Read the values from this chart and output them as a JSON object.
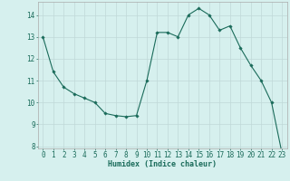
{
  "x": [
    0,
    1,
    2,
    3,
    4,
    5,
    6,
    7,
    8,
    9,
    10,
    11,
    12,
    13,
    14,
    15,
    16,
    17,
    18,
    19,
    20,
    21,
    22,
    23
  ],
  "y": [
    13.0,
    11.4,
    10.7,
    10.4,
    10.2,
    10.0,
    9.5,
    9.4,
    9.35,
    9.4,
    11.0,
    13.2,
    13.2,
    13.0,
    14.0,
    14.3,
    14.0,
    13.3,
    13.5,
    12.5,
    11.7,
    11.0,
    10.0,
    7.7
  ],
  "line_color": "#1a6b5a",
  "marker": "D",
  "marker_size": 1.8,
  "bg_color": "#d6f0ee",
  "grid_color": "#c0d8d8",
  "xlabel": "Humidex (Indice chaleur)",
  "ylim": [
    7.9,
    14.6
  ],
  "xlim": [
    -0.5,
    23.5
  ],
  "yticks": [
    8,
    9,
    10,
    11,
    12,
    13,
    14
  ],
  "xticks": [
    0,
    1,
    2,
    3,
    4,
    5,
    6,
    7,
    8,
    9,
    10,
    11,
    12,
    13,
    14,
    15,
    16,
    17,
    18,
    19,
    20,
    21,
    22,
    23
  ],
  "xlabel_fontsize": 6.0,
  "tick_fontsize": 5.5
}
